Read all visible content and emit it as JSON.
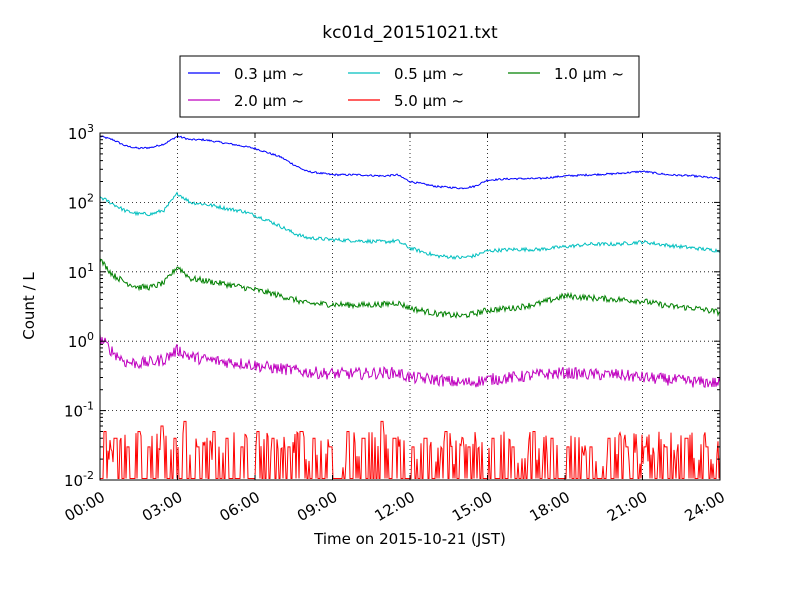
{
  "chart_data": {
    "type": "line",
    "title": "kc01d_20151021.txt",
    "xlabel": "Time on 2015-10-21 (JST)",
    "ylabel": "Count / L",
    "xlim": [
      0,
      24
    ],
    "ylim": [
      0.01,
      1000
    ],
    "yscale": "log",
    "grid": true,
    "legend_position": "top-center",
    "x_ticks": [
      0,
      3,
      6,
      9,
      12,
      15,
      18,
      21,
      24
    ],
    "x_tick_labels": [
      "00:00",
      "03:00",
      "06:00",
      "09:00",
      "12:00",
      "15:00",
      "18:00",
      "21:00",
      "24:00"
    ],
    "y_ticks": [
      0.01,
      0.1,
      1,
      10,
      100,
      1000
    ],
    "y_tick_base": [
      "10",
      "10",
      "10",
      "10",
      "10",
      "10"
    ],
    "y_tick_exp": [
      "-2",
      "-1",
      "0",
      "1",
      "2",
      "3"
    ],
    "series": [
      {
        "name": "0.3 μm ~",
        "color": "#0000ff",
        "noise": 0.03,
        "x": [
          0,
          0.5,
          1,
          1.5,
          2,
          2.5,
          3,
          3.5,
          4,
          4.5,
          5,
          5.5,
          6,
          6.5,
          7,
          7.5,
          8,
          9,
          10,
          11,
          11.5,
          12,
          13,
          14,
          14.5,
          15,
          16,
          17,
          18,
          19,
          20,
          21,
          22,
          23,
          24
        ],
        "y": [
          900,
          800,
          650,
          600,
          620,
          700,
          900,
          800,
          800,
          750,
          700,
          650,
          600,
          520,
          450,
          350,
          280,
          250,
          250,
          240,
          250,
          200,
          170,
          160,
          170,
          210,
          220,
          220,
          240,
          250,
          260,
          280,
          250,
          240,
          220
        ]
      },
      {
        "name": "0.5 μm ~",
        "color": "#00bfbf",
        "noise": 0.06,
        "x": [
          0,
          0.5,
          1,
          1.5,
          2,
          2.5,
          3,
          3.5,
          4,
          4.5,
          5,
          5.5,
          6,
          6.5,
          7,
          7.5,
          8,
          9,
          10,
          11,
          11.5,
          12,
          13,
          14,
          14.5,
          15,
          16,
          17,
          18,
          19,
          20,
          21,
          22,
          23,
          24
        ],
        "y": [
          120,
          95,
          75,
          68,
          68,
          78,
          135,
          100,
          95,
          88,
          80,
          75,
          65,
          55,
          45,
          36,
          31,
          29,
          28,
          27,
          28,
          22,
          17,
          16,
          17,
          20,
          21,
          21,
          23,
          25,
          25,
          27,
          24,
          22,
          20
        ]
      },
      {
        "name": "1.0 μm ~",
        "color": "#008000",
        "noise": 0.1,
        "x": [
          0,
          0.5,
          1,
          1.5,
          2,
          2.5,
          3,
          3.5,
          4,
          4.5,
          5,
          5.5,
          6,
          6.5,
          7,
          7.5,
          8,
          9,
          10,
          11,
          11.5,
          12,
          13,
          14,
          14.5,
          15,
          16,
          17,
          18,
          19,
          20,
          21,
          22,
          23,
          24
        ],
        "y": [
          15,
          9,
          7,
          6,
          6,
          7,
          12,
          8,
          7.5,
          7,
          6.5,
          6,
          5.5,
          5,
          4.5,
          4,
          3.5,
          3.4,
          3.3,
          3.4,
          3.6,
          3,
          2.5,
          2.3,
          2.5,
          2.8,
          3,
          3.5,
          4.5,
          4.2,
          4,
          3.8,
          3.2,
          3,
          2.6
        ]
      },
      {
        "name": "2.0 μm ~",
        "color": "#bf00bf",
        "noise": 0.2,
        "x": [
          0,
          0.5,
          1,
          1.5,
          2,
          2.5,
          3,
          3.5,
          4,
          4.5,
          5,
          5.5,
          6,
          6.5,
          7,
          7.5,
          8,
          9,
          10,
          11,
          11.5,
          12,
          13,
          14,
          14.5,
          15,
          16,
          17,
          18,
          19,
          20,
          21,
          22,
          23,
          24
        ],
        "y": [
          1.1,
          0.7,
          0.5,
          0.48,
          0.5,
          0.55,
          0.75,
          0.6,
          0.55,
          0.52,
          0.5,
          0.48,
          0.45,
          0.42,
          0.4,
          0.38,
          0.36,
          0.34,
          0.34,
          0.35,
          0.35,
          0.3,
          0.28,
          0.25,
          0.26,
          0.28,
          0.3,
          0.33,
          0.35,
          0.33,
          0.33,
          0.3,
          0.28,
          0.26,
          0.25
        ]
      },
      {
        "name": "5.0 μm ~",
        "color": "#ff0000",
        "noise": 0.0,
        "sampled_x": [
          0.2,
          0.6,
          1.1,
          1.5,
          1.9,
          2.4,
          2.9,
          3.3,
          3.8,
          4.4,
          4.9,
          5.5,
          6.1,
          6.7,
          7.3,
          7.8,
          8.3,
          8.9,
          9.6,
          10.2,
          10.9,
          11.4,
          12.1,
          12.6,
          13.4,
          14.3,
          15.2,
          16.0,
          16.8,
          17.5,
          18.1,
          19.0,
          19.7,
          20.4,
          21.1,
          21.9,
          22.7,
          23.5
        ],
        "sampled_y": [
          0.05,
          0.04,
          0.03,
          0.05,
          0.03,
          0.06,
          0.04,
          0.07,
          0.03,
          0.05,
          0.04,
          0.03,
          0.05,
          0.04,
          0.03,
          0.05,
          0.04,
          0.03,
          0.05,
          0.04,
          0.07,
          0.04,
          0.03,
          0.04,
          0.05,
          0.03,
          0.04,
          0.03,
          0.05,
          0.04,
          0.03,
          0.03,
          0.04,
          0.03,
          0.03,
          0.03,
          0.04,
          0.03
        ]
      }
    ]
  }
}
